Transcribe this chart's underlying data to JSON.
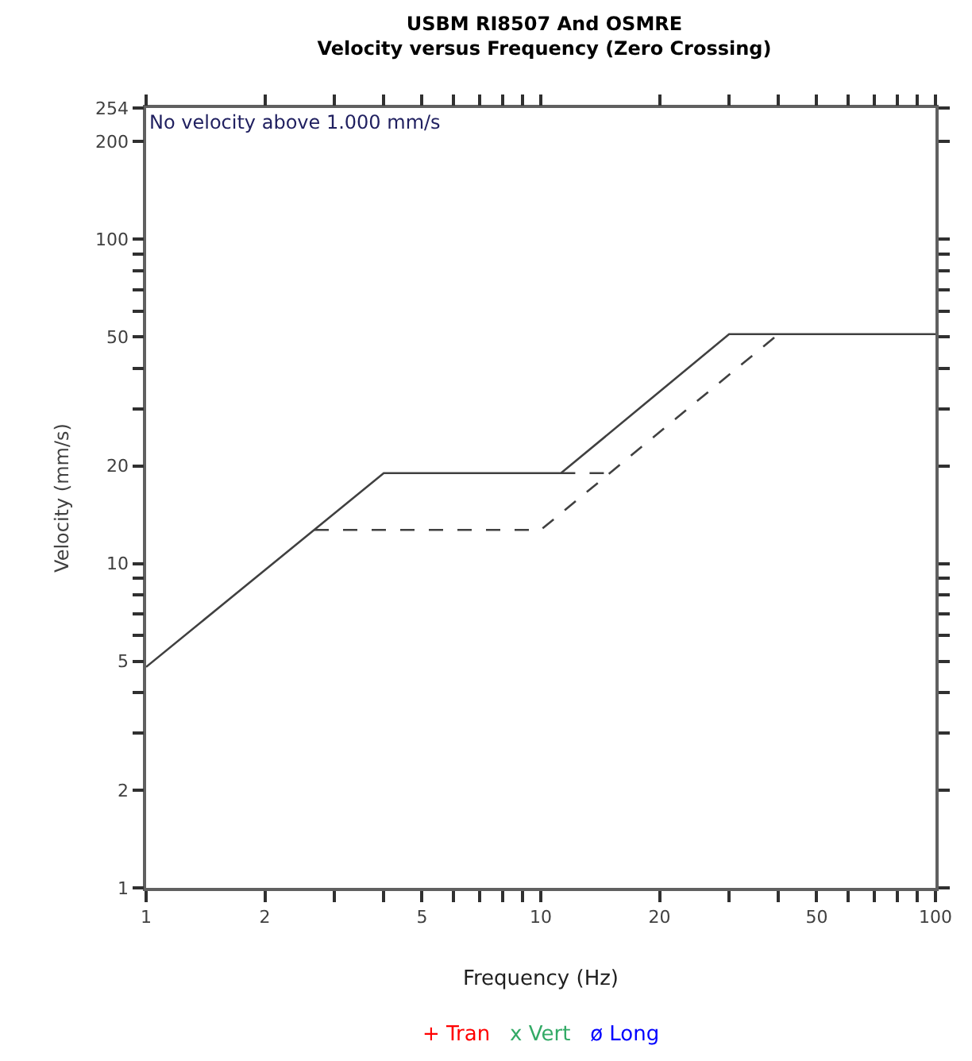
{
  "chart_data": {
    "type": "line",
    "title": "USBM RI8507 And OSMRE",
    "subtitle": "Velocity versus Frequency (Zero Crossing)",
    "xlabel": "Frequency (Hz)",
    "ylabel": "Velocity (mm/s)",
    "log": "xy",
    "xlim": [
      1,
      100
    ],
    "ylim": [
      1,
      254
    ],
    "xticks": [
      1,
      2,
      {
        "value": 3,
        "label": null
      },
      {
        "value": 4,
        "label": null
      },
      5,
      {
        "value": 6,
        "label": null
      },
      {
        "value": 7,
        "label": null
      },
      {
        "value": 8,
        "label": null
      },
      {
        "value": 9,
        "label": null
      },
      10,
      20,
      {
        "value": 30,
        "label": null
      },
      {
        "value": 40,
        "label": null
      },
      50,
      {
        "value": 60,
        "label": null
      },
      {
        "value": 70,
        "label": null
      },
      {
        "value": 80,
        "label": null
      },
      {
        "value": 90,
        "label": null
      },
      100
    ],
    "yticks": [
      1,
      2,
      {
        "value": 3,
        "label": null
      },
      {
        "value": 4,
        "label": null
      },
      5,
      {
        "value": 6,
        "label": null
      },
      {
        "value": 7,
        "label": null
      },
      {
        "value": 8,
        "label": null
      },
      {
        "value": 9,
        "label": null
      },
      10,
      20,
      {
        "value": 30,
        "label": null
      },
      {
        "value": 40,
        "label": null
      },
      50,
      {
        "value": 60,
        "label": null
      },
      {
        "value": 70,
        "label": null
      },
      {
        "value": 80,
        "label": null
      },
      {
        "value": 90,
        "label": null
      },
      100,
      200,
      254
    ],
    "annotations": [
      "No velocity above 1.000 mm/s"
    ],
    "series": [
      {
        "color": "#404040",
        "line_style": "solid",
        "marker": "none",
        "x": [
          1,
          4,
          11.25,
          30,
          100
        ],
        "values": [
          4.8,
          19,
          19,
          51,
          51
        ]
      },
      {
        "color": "#404040",
        "line_style": "dashed",
        "marker": "none",
        "x": [
          2.67,
          10,
          40
        ],
        "values": [
          12.7,
          12.7,
          51
        ]
      },
      {
        "color": "#404040",
        "line_style": "dashed",
        "marker": "none",
        "x": [
          11.25,
          15
        ],
        "values": [
          19,
          19
        ]
      },
      {
        "type": "scatter",
        "name": "+ Tran",
        "color": "#ff0000"
      },
      {
        "type": "scatter",
        "name": "x Vert",
        "color": "#33aa66"
      },
      {
        "type": "scatter",
        "name": "ø Long",
        "color": "#0000ff"
      }
    ]
  }
}
